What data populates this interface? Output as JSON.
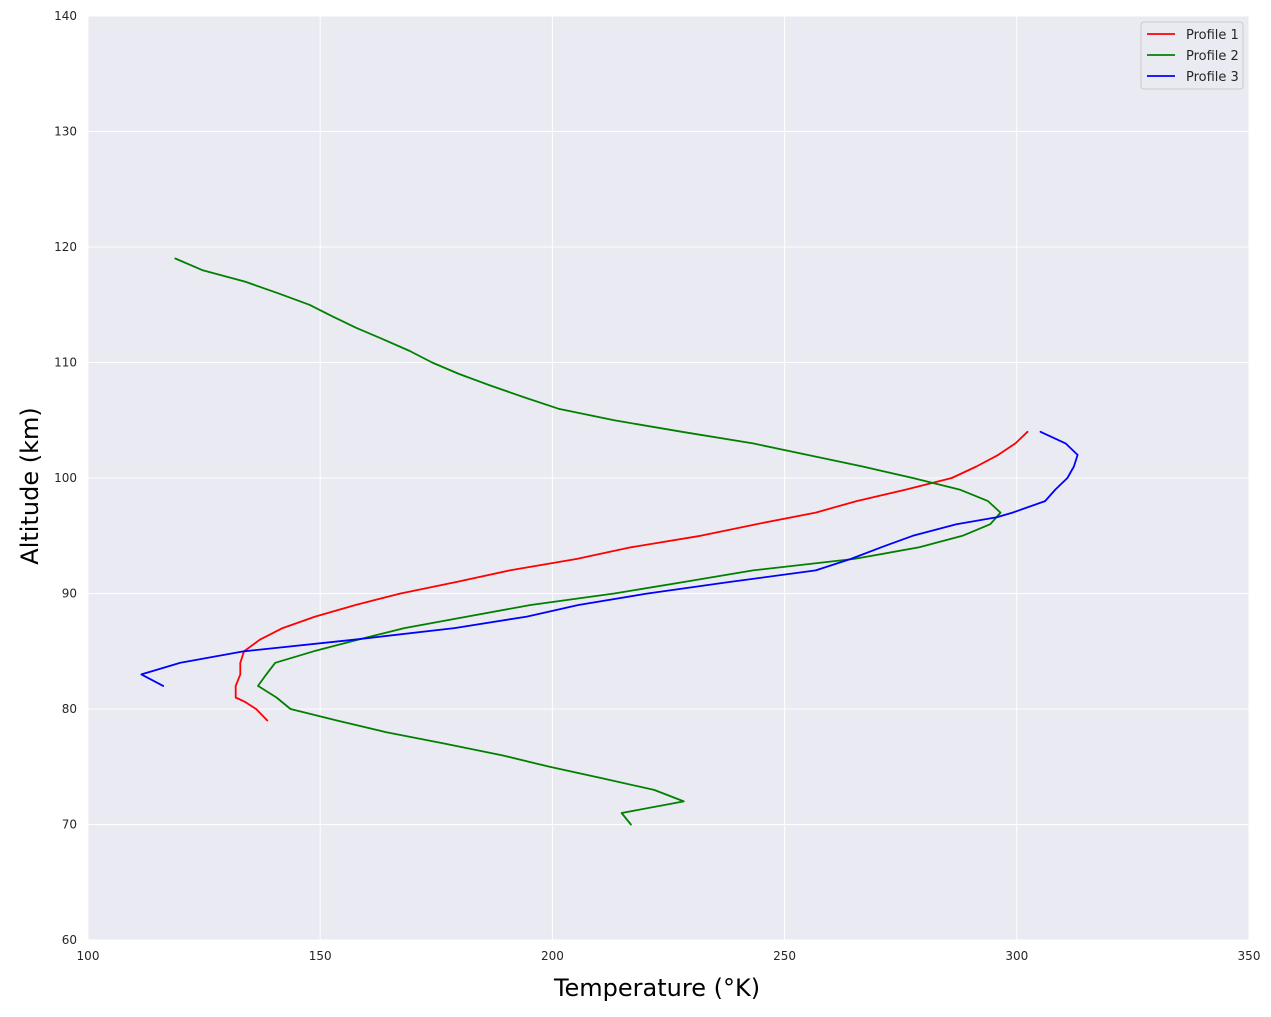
{
  "chart_data": {
    "type": "line",
    "title": "",
    "xlabel": "Temperature (°K)",
    "ylabel": "Altitude (km)",
    "xlim": [
      100,
      350
    ],
    "ylim": [
      60,
      140
    ],
    "xticks": [
      "100",
      "150",
      "200",
      "250",
      "300",
      "350"
    ],
    "yticks": [
      "60",
      "70",
      "80",
      "90",
      "100",
      "110",
      "120",
      "130",
      "140"
    ],
    "grid": true,
    "background": "#eaeaf2",
    "legend": "top-right",
    "series": [
      {
        "name": "Profile 1",
        "color": "#ff0000",
        "points": [
          [
            138.6,
            79
          ],
          [
            136.2,
            80
          ],
          [
            133.9,
            80.6
          ],
          [
            131.8,
            81
          ],
          [
            131.8,
            82
          ],
          [
            132.8,
            83
          ],
          [
            132.8,
            84
          ],
          [
            133.6,
            85
          ],
          [
            137.0,
            86
          ],
          [
            141.9,
            87
          ],
          [
            148.9,
            88
          ],
          [
            157.6,
            89
          ],
          [
            167.3,
            90
          ],
          [
            179.3,
            91
          ],
          [
            190.8,
            92
          ],
          [
            205.3,
            93
          ],
          [
            216.9,
            94
          ],
          [
            231.9,
            95
          ],
          [
            243.9,
            96
          ],
          [
            256.7,
            97
          ],
          [
            265.5,
            98
          ],
          [
            276.1,
            99
          ],
          [
            286.0,
            100
          ],
          [
            291.3,
            101
          ],
          [
            296.0,
            102
          ],
          [
            299.7,
            103
          ],
          [
            302.3,
            104
          ]
        ]
      },
      {
        "name": "Profile 2",
        "color": "#008000",
        "points": [
          [
            216.9,
            70
          ],
          [
            214.9,
            71
          ],
          [
            228.3,
            72
          ],
          [
            221.9,
            73
          ],
          [
            210.7,
            74
          ],
          [
            199.4,
            75
          ],
          [
            189.1,
            76
          ],
          [
            176.8,
            77
          ],
          [
            164.1,
            78
          ],
          [
            153.6,
            79
          ],
          [
            143.6,
            80
          ],
          [
            140.6,
            81
          ],
          [
            136.6,
            82
          ],
          [
            138.4,
            83
          ],
          [
            140.3,
            84
          ],
          [
            148.6,
            85
          ],
          [
            158.1,
            86
          ],
          [
            168.1,
            87
          ],
          [
            181.6,
            88
          ],
          [
            195.3,
            89
          ],
          [
            213.3,
            90
          ],
          [
            228.3,
            91
          ],
          [
            243.2,
            92
          ],
          [
            265.0,
            93
          ],
          [
            279.0,
            94
          ],
          [
            288.3,
            95
          ],
          [
            294.3,
            96
          ],
          [
            296.5,
            97
          ],
          [
            293.8,
            98
          ],
          [
            287.7,
            99
          ],
          [
            277.6,
            100
          ],
          [
            266.8,
            101
          ],
          [
            254.9,
            102
          ],
          [
            243.2,
            103
          ],
          [
            227.9,
            104
          ],
          [
            213.3,
            105
          ],
          [
            201.3,
            106
          ],
          [
            193.8,
            107
          ],
          [
            186.7,
            108
          ],
          [
            179.9,
            109
          ],
          [
            174.1,
            110
          ],
          [
            169.3,
            111
          ],
          [
            163.6,
            112
          ],
          [
            157.8,
            113
          ],
          [
            152.6,
            114
          ],
          [
            147.7,
            115
          ],
          [
            140.9,
            116
          ],
          [
            133.8,
            117
          ],
          [
            124.6,
            118
          ],
          [
            118.8,
            119
          ]
        ]
      },
      {
        "name": "Profile 3",
        "color": "#0000ff",
        "points": [
          [
            116.2,
            82
          ],
          [
            111.5,
            83
          ],
          [
            119.9,
            84
          ],
          [
            133.6,
            85
          ],
          [
            157.3,
            86
          ],
          [
            178.9,
            87
          ],
          [
            194.5,
            88
          ],
          [
            205.6,
            89
          ],
          [
            220.5,
            90
          ],
          [
            238.1,
            91
          ],
          [
            256.7,
            92
          ],
          [
            264.3,
            93
          ],
          [
            270.8,
            94
          ],
          [
            277.6,
            95
          ],
          [
            287.0,
            96
          ],
          [
            295.7,
            96.6
          ],
          [
            299.1,
            97
          ],
          [
            306.1,
            98
          ],
          [
            308.3,
            99
          ],
          [
            310.9,
            100
          ],
          [
            312.3,
            101
          ],
          [
            313.1,
            102
          ],
          [
            310.5,
            103
          ],
          [
            305.1,
            104
          ]
        ]
      }
    ]
  }
}
